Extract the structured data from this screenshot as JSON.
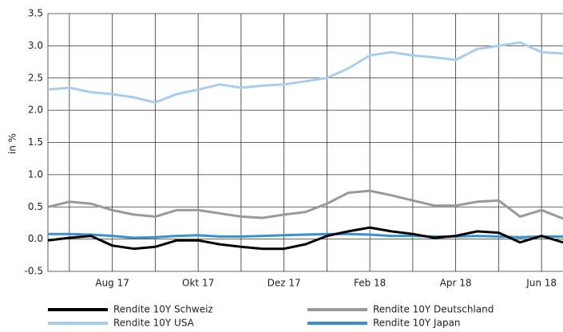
{
  "chart_data": {
    "type": "line",
    "y_label": "in %",
    "categories": [
      null,
      null,
      null,
      "Aug 17",
      null,
      null,
      null,
      "Okt 17",
      null,
      null,
      null,
      "Dez 17",
      null,
      null,
      null,
      "Feb 18",
      null,
      null,
      null,
      "Apr 18",
      null,
      null,
      null,
      "Jun 18",
      null
    ],
    "series": [
      {
        "name": "Rendite 10Y Schweiz",
        "color": "#000000",
        "values": [
          -0.02,
          0.02,
          0.05,
          -0.1,
          -0.15,
          -0.12,
          -0.02,
          -0.02,
          -0.08,
          -0.12,
          -0.15,
          -0.15,
          -0.08,
          0.05,
          0.12,
          0.18,
          0.12,
          0.08,
          0.02,
          0.05,
          0.12,
          0.1,
          -0.05,
          0.05,
          -0.05
        ]
      },
      {
        "name": "Rendite 10Y Deutschland",
        "color": "#999999",
        "values": [
          0.5,
          0.58,
          0.55,
          0.45,
          0.38,
          0.35,
          0.45,
          0.45,
          0.4,
          0.35,
          0.33,
          0.38,
          0.42,
          0.55,
          0.72,
          0.75,
          0.68,
          0.6,
          0.52,
          0.52,
          0.58,
          0.6,
          0.35,
          0.45,
          0.32
        ]
      },
      {
        "name": "Rendite 10Y USA",
        "color": "#a8cdef",
        "values": [
          2.32,
          2.35,
          2.28,
          2.25,
          2.2,
          2.12,
          2.25,
          2.32,
          2.4,
          2.35,
          2.38,
          2.4,
          2.45,
          2.5,
          2.65,
          2.85,
          2.9,
          2.85,
          2.82,
          2.78,
          2.95,
          3.0,
          3.05,
          2.9,
          2.88
        ]
      },
      {
        "name": "Rendite 10Y Japan",
        "color": "#3a8fd0",
        "values": [
          0.08,
          0.08,
          0.07,
          0.05,
          0.02,
          0.03,
          0.05,
          0.06,
          0.04,
          0.04,
          0.05,
          0.06,
          0.07,
          0.08,
          0.08,
          0.07,
          0.05,
          0.05,
          0.04,
          0.04,
          0.05,
          0.04,
          0.03,
          0.04,
          0.04
        ]
      }
    ],
    "ylim": [
      -0.5,
      3.5
    ],
    "yticks": [
      -0.5,
      {
        "value": 0,
        "label": "0.0"
      },
      0.5,
      {
        "value": 1,
        "label": "1.0"
      },
      1.5,
      {
        "value": 2,
        "label": "2.0"
      },
      2.5,
      {
        "value": 3,
        "label": "3.0"
      },
      3.5
    ],
    "grid": true,
    "legend": "bottom"
  }
}
